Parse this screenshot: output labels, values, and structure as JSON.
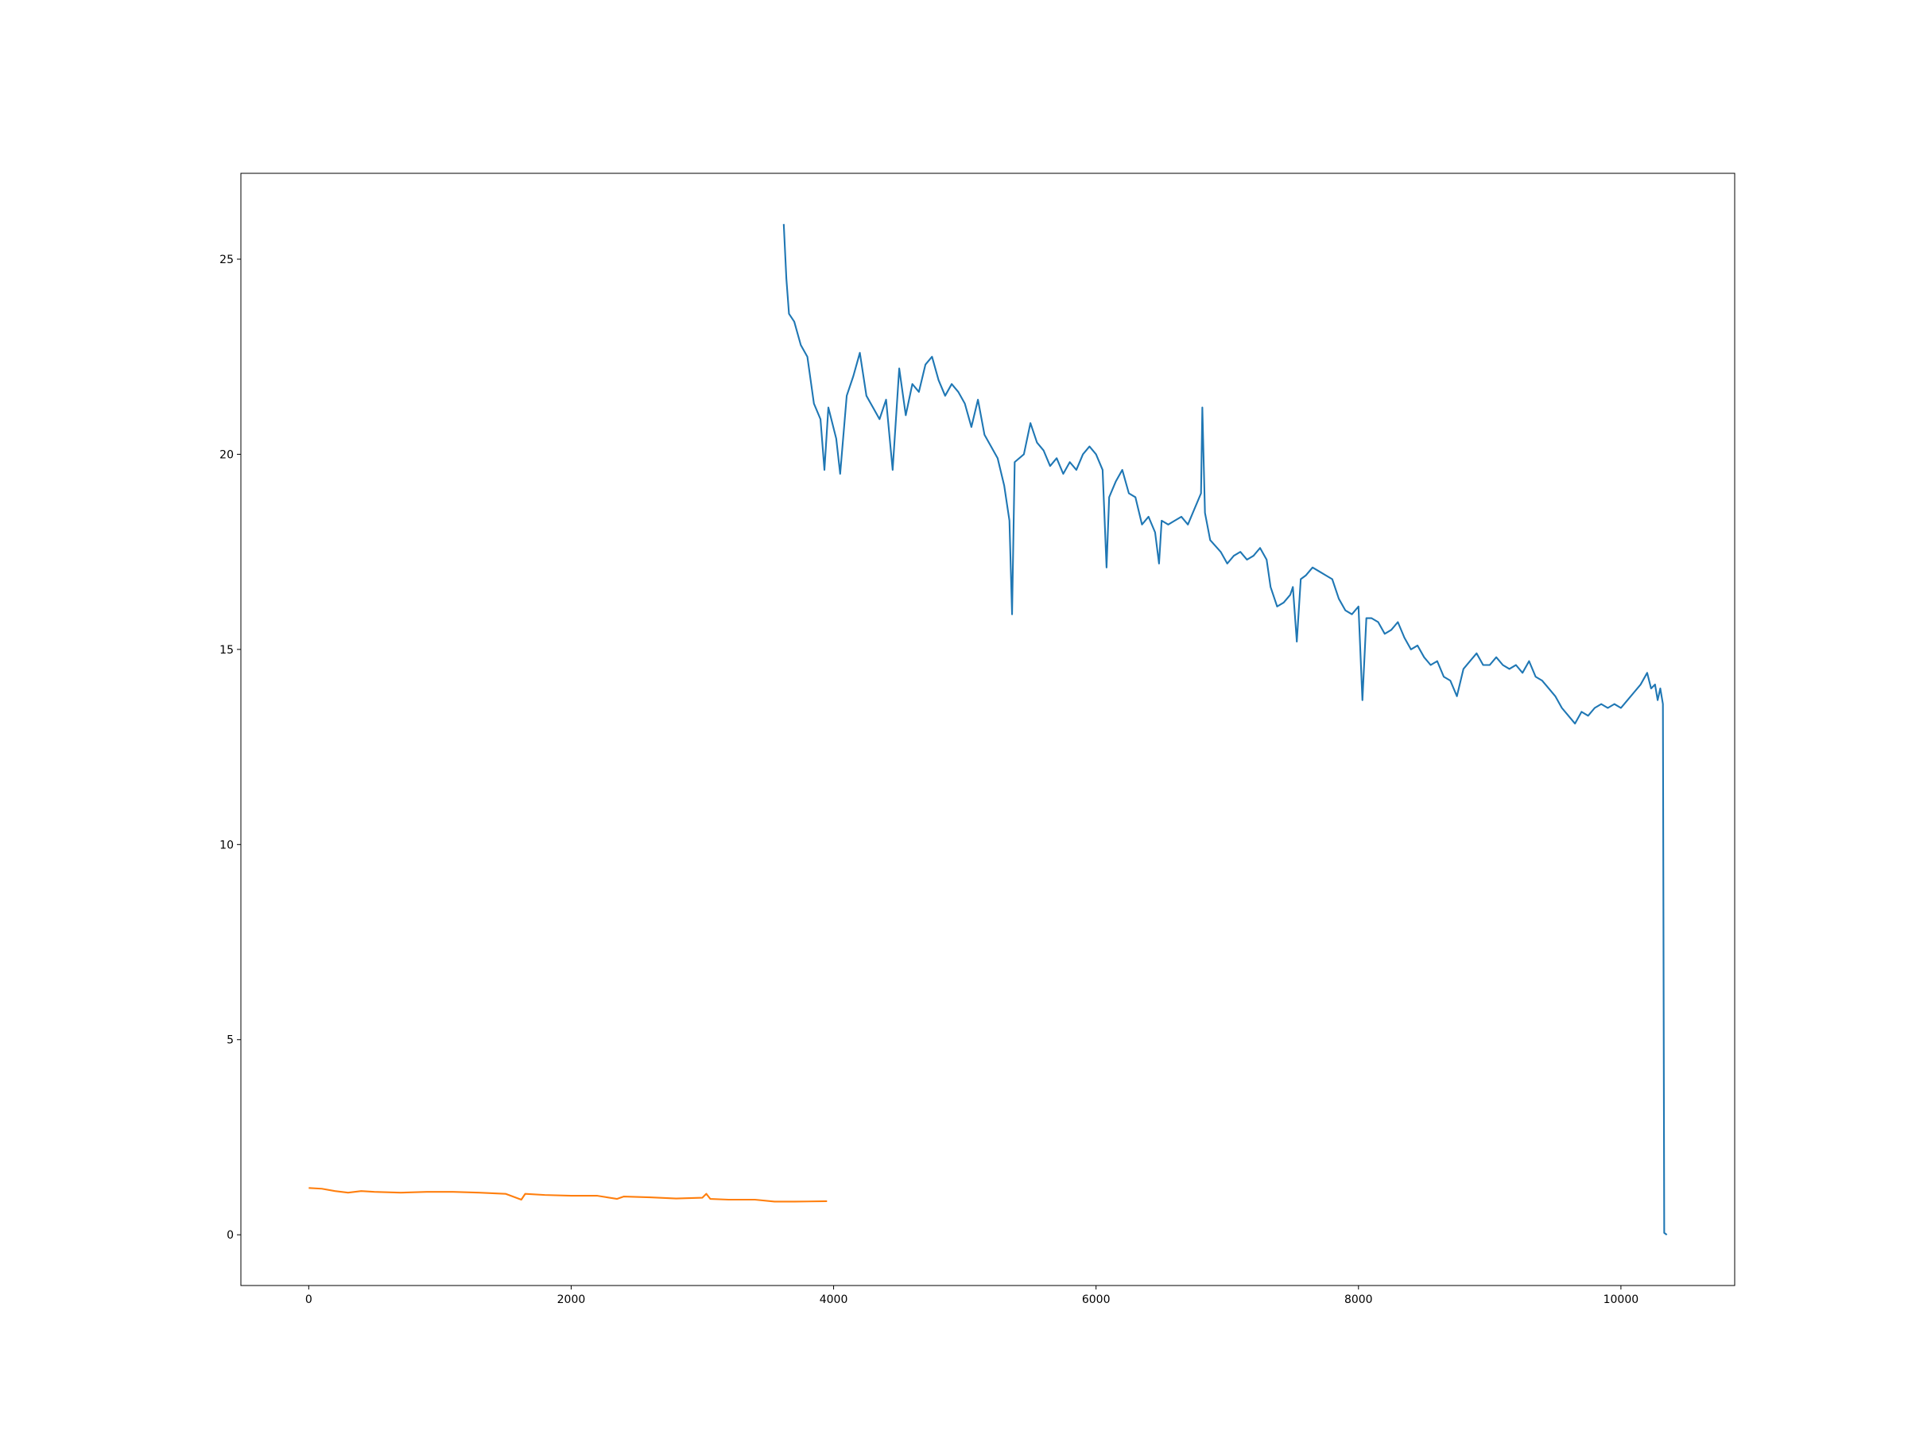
{
  "chart_data": {
    "type": "line",
    "xlim": [
      -517,
      10867
    ],
    "xticks": [
      0,
      2000,
      4000,
      6000,
      8000,
      10000
    ],
    "ylim": [
      -1.3,
      27.2
    ],
    "yticks": [
      0,
      5,
      10,
      15,
      20,
      25
    ],
    "grid": false,
    "series": [
      {
        "color": "#1f77b4",
        "x": [
          3620,
          3640,
          3660,
          3700,
          3750,
          3800,
          3850,
          3900,
          3930,
          3960,
          4020,
          4050,
          4100,
          4150,
          4200,
          4250,
          4300,
          4350,
          4400,
          4450,
          4500,
          4550,
          4600,
          4650,
          4700,
          4750,
          4800,
          4850,
          4900,
          4950,
          5000,
          5050,
          5100,
          5150,
          5200,
          5250,
          5300,
          5340,
          5360,
          5380,
          5450,
          5500,
          5550,
          5600,
          5650,
          5700,
          5750,
          5800,
          5850,
          5900,
          5950,
          6000,
          6050,
          6080,
          6100,
          6150,
          6200,
          6250,
          6300,
          6350,
          6400,
          6450,
          6480,
          6500,
          6550,
          6600,
          6650,
          6700,
          6750,
          6800,
          6810,
          6830,
          6870,
          6950,
          7000,
          7050,
          7100,
          7150,
          7200,
          7250,
          7300,
          7330,
          7380,
          7430,
          7480,
          7500,
          7530,
          7560,
          7600,
          7650,
          7700,
          7750,
          7800,
          7850,
          7900,
          7950,
          8000,
          8030,
          8060,
          8100,
          8150,
          8200,
          8250,
          8300,
          8350,
          8400,
          8450,
          8500,
          8550,
          8600,
          8650,
          8700,
          8750,
          8800,
          8850,
          8900,
          8950,
          9000,
          9050,
          9100,
          9150,
          9200,
          9250,
          9300,
          9350,
          9400,
          9450,
          9500,
          9550,
          9600,
          9650,
          9700,
          9750,
          9800,
          9850,
          9900,
          9950,
          10000,
          10050,
          10100,
          10150,
          10200,
          10230,
          10260,
          10280,
          10300,
          10320,
          10330,
          10350
        ],
        "values": [
          25.9,
          24.5,
          23.6,
          23.4,
          22.8,
          22.5,
          21.3,
          20.9,
          19.6,
          21.2,
          20.4,
          19.5,
          21.5,
          22.0,
          22.6,
          21.5,
          21.2,
          20.9,
          21.4,
          19.6,
          22.2,
          21.0,
          21.8,
          21.6,
          22.3,
          22.5,
          21.9,
          21.5,
          21.8,
          21.6,
          21.3,
          20.7,
          21.4,
          20.5,
          20.2,
          19.9,
          19.2,
          18.3,
          15.9,
          19.8,
          20.0,
          20.8,
          20.3,
          20.1,
          19.7,
          19.9,
          19.5,
          19.8,
          19.6,
          20.0,
          20.2,
          20.0,
          19.6,
          17.1,
          18.9,
          19.3,
          19.6,
          19.0,
          18.9,
          18.2,
          18.4,
          18.0,
          17.2,
          18.3,
          18.2,
          18.3,
          18.4,
          18.2,
          18.6,
          19.0,
          21.2,
          18.5,
          17.8,
          17.5,
          17.2,
          17.4,
          17.5,
          17.3,
          17.4,
          17.6,
          17.3,
          16.6,
          16.1,
          16.2,
          16.4,
          16.6,
          15.2,
          16.8,
          16.9,
          17.1,
          17.0,
          16.9,
          16.8,
          16.3,
          16.0,
          15.9,
          16.1,
          13.7,
          15.8,
          15.8,
          15.7,
          15.4,
          15.5,
          15.7,
          15.3,
          15.0,
          15.1,
          14.8,
          14.6,
          14.7,
          14.3,
          14.2,
          13.8,
          14.5,
          14.7,
          14.9,
          14.6,
          14.6,
          14.8,
          14.6,
          14.5,
          14.6,
          14.4,
          14.7,
          14.3,
          14.2,
          14.0,
          13.8,
          13.5,
          13.3,
          13.1,
          13.4,
          13.3,
          13.5,
          13.6,
          13.5,
          13.6,
          13.5,
          13.7,
          13.9,
          14.1,
          14.4,
          14.0,
          14.1,
          13.7,
          14.0,
          13.6,
          0.05,
          0.0
        ]
      },
      {
        "color": "#ff7f0e",
        "x": [
          0,
          100,
          200,
          300,
          400,
          500,
          700,
          900,
          1100,
          1300,
          1500,
          1620,
          1650,
          1800,
          2000,
          2200,
          2350,
          2400,
          2600,
          2800,
          3000,
          3030,
          3060,
          3200,
          3400,
          3550,
          3700,
          3950
        ],
        "values": [
          1.2,
          1.18,
          1.12,
          1.08,
          1.12,
          1.1,
          1.08,
          1.1,
          1.1,
          1.08,
          1.05,
          0.9,
          1.05,
          1.02,
          1.0,
          1.0,
          0.92,
          0.98,
          0.96,
          0.93,
          0.95,
          1.05,
          0.92,
          0.9,
          0.9,
          0.85,
          0.85,
          0.86
        ]
      }
    ]
  }
}
